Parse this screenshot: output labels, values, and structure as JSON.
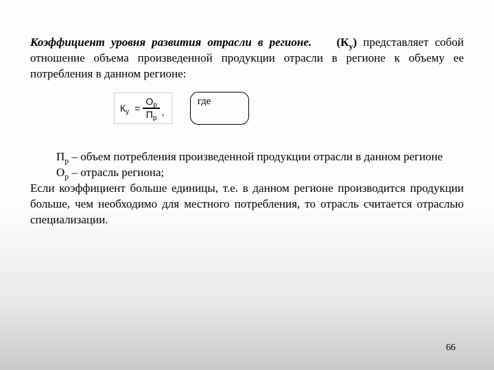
{
  "heading": {
    "title": "Коэффициент уровня развития отрасли в регионе.",
    "symbol_open": "(К",
    "symbol_sub": "у",
    "symbol_close": ")",
    "rest": " представляет собой отношение объема произведенной продукции отрасли в регионе к объему ее потребления в данном регионе:"
  },
  "formula": {
    "K": "К",
    "K_sub": "у",
    "eq": "=",
    "num_sym": "О",
    "num_sub": "р",
    "den_sym": "П",
    "den_sub": "р",
    "comma": ","
  },
  "where_label": "где",
  "definitions": {
    "pp_sym": "П",
    "pp_sub": "р",
    "pp_text": " – объем потребления произведенной продукции отрасли в данном регионе",
    "op_sym": "О",
    "op_sub": "р",
    "op_text": " – отрасль региона;"
  },
  "conclusion": "Если коэффициент больше единицы, т.е. в данном регионе производится продукции больше, чем необходимо для местного потребления, то отрасль считается отраслью специализации.",
  "page_number": "66"
}
